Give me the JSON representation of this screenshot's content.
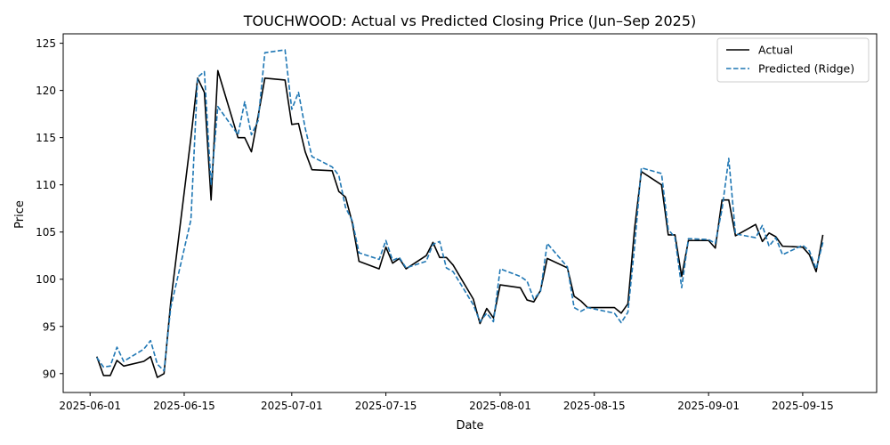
{
  "chart_data": {
    "type": "line",
    "title": "TOUCHWOOD: Actual vs Predicted Closing Price (Jun–Sep 2025)",
    "xlabel": "Date",
    "ylabel": "Price",
    "xlim": [
      "2025-05-28",
      "2025-09-26"
    ],
    "ylim": [
      88,
      126
    ],
    "x_ticks": [
      "2025-06-01",
      "2025-06-15",
      "2025-07-01",
      "2025-07-15",
      "2025-08-01",
      "2025-08-15",
      "2025-09-01",
      "2025-09-15"
    ],
    "y_ticks": [
      90,
      95,
      100,
      105,
      110,
      115,
      120,
      125
    ],
    "grid": false,
    "legend_position": "top-right",
    "series": [
      {
        "name": "Actual",
        "color": "#000000",
        "style": "solid",
        "points": [
          [
            "2025-06-02",
            91.8
          ],
          [
            "2025-06-03",
            89.8
          ],
          [
            "2025-06-04",
            89.8
          ],
          [
            "2025-06-05",
            91.4
          ],
          [
            "2025-06-06",
            90.8
          ],
          [
            "2025-06-09",
            91.3
          ],
          [
            "2025-06-10",
            91.8
          ],
          [
            "2025-06-11",
            89.6
          ],
          [
            "2025-06-12",
            90.0
          ],
          [
            "2025-06-13",
            97.6
          ],
          [
            "2025-06-16",
            115.0
          ],
          [
            "2025-06-17",
            121.3
          ],
          [
            "2025-06-18",
            119.8
          ],
          [
            "2025-06-19",
            108.4
          ],
          [
            "2025-06-20",
            122.1
          ],
          [
            "2025-06-23",
            115.0
          ],
          [
            "2025-06-24",
            115.0
          ],
          [
            "2025-06-25",
            113.5
          ],
          [
            "2025-06-26",
            117.3
          ],
          [
            "2025-06-27",
            121.3
          ],
          [
            "2025-06-30",
            121.1
          ],
          [
            "2025-07-01",
            116.4
          ],
          [
            "2025-07-02",
            116.5
          ],
          [
            "2025-07-03",
            113.5
          ],
          [
            "2025-07-04",
            111.6
          ],
          [
            "2025-07-07",
            111.5
          ],
          [
            "2025-07-08",
            109.3
          ],
          [
            "2025-07-09",
            108.7
          ],
          [
            "2025-07-10",
            106.0
          ],
          [
            "2025-07-11",
            101.9
          ],
          [
            "2025-07-14",
            101.1
          ],
          [
            "2025-07-15",
            103.4
          ],
          [
            "2025-07-16",
            101.7
          ],
          [
            "2025-07-17",
            102.2
          ],
          [
            "2025-07-18",
            101.1
          ],
          [
            "2025-07-21",
            102.5
          ],
          [
            "2025-07-22",
            103.9
          ],
          [
            "2025-07-23",
            102.3
          ],
          [
            "2025-07-24",
            102.3
          ],
          [
            "2025-07-25",
            101.5
          ],
          [
            "2025-07-28",
            97.9
          ],
          [
            "2025-07-29",
            95.3
          ],
          [
            "2025-07-30",
            96.9
          ],
          [
            "2025-07-31",
            95.9
          ],
          [
            "2025-08-01",
            99.4
          ],
          [
            "2025-08-04",
            99.1
          ],
          [
            "2025-08-05",
            97.8
          ],
          [
            "2025-08-06",
            97.6
          ],
          [
            "2025-08-07",
            98.8
          ],
          [
            "2025-08-08",
            102.2
          ],
          [
            "2025-08-11",
            101.2
          ],
          [
            "2025-08-12",
            98.2
          ],
          [
            "2025-08-13",
            97.7
          ],
          [
            "2025-08-14",
            97.0
          ],
          [
            "2025-08-18",
            97.0
          ],
          [
            "2025-08-19",
            96.4
          ],
          [
            "2025-08-20",
            97.4
          ],
          [
            "2025-08-21",
            105.4
          ],
          [
            "2025-08-22",
            111.4
          ],
          [
            "2025-08-25",
            110.0
          ],
          [
            "2025-08-26",
            104.7
          ],
          [
            "2025-08-27",
            104.7
          ],
          [
            "2025-08-28",
            100.3
          ],
          [
            "2025-08-29",
            104.1
          ],
          [
            "2025-09-01",
            104.1
          ],
          [
            "2025-09-02",
            103.3
          ],
          [
            "2025-09-03",
            108.4
          ],
          [
            "2025-09-04",
            108.4
          ],
          [
            "2025-09-05",
            104.6
          ],
          [
            "2025-09-08",
            105.8
          ],
          [
            "2025-09-09",
            104.0
          ],
          [
            "2025-09-10",
            104.9
          ],
          [
            "2025-09-11",
            104.5
          ],
          [
            "2025-09-12",
            103.5
          ],
          [
            "2025-09-15",
            103.4
          ],
          [
            "2025-09-16",
            102.6
          ],
          [
            "2025-09-17",
            100.8
          ],
          [
            "2025-09-18",
            104.7
          ]
        ]
      },
      {
        "name": "Predicted (Ridge)",
        "color": "#1f77b4",
        "style": "dashed",
        "points": [
          [
            "2025-06-02",
            91.7
          ],
          [
            "2025-06-03",
            90.7
          ],
          [
            "2025-06-04",
            90.8
          ],
          [
            "2025-06-05",
            92.8
          ],
          [
            "2025-06-06",
            91.3
          ],
          [
            "2025-06-09",
            92.6
          ],
          [
            "2025-06-10",
            93.5
          ],
          [
            "2025-06-11",
            91.0
          ],
          [
            "2025-06-12",
            90.3
          ],
          [
            "2025-06-13",
            97.0
          ],
          [
            "2025-06-16",
            106.3
          ],
          [
            "2025-06-17",
            121.4
          ],
          [
            "2025-06-18",
            122.0
          ],
          [
            "2025-06-19",
            110.0
          ],
          [
            "2025-06-20",
            118.3
          ],
          [
            "2025-06-23",
            115.3
          ],
          [
            "2025-06-24",
            118.8
          ],
          [
            "2025-06-25",
            115.3
          ],
          [
            "2025-06-26",
            116.8
          ],
          [
            "2025-06-27",
            124.0
          ],
          [
            "2025-06-30",
            124.3
          ],
          [
            "2025-07-01",
            118.0
          ],
          [
            "2025-07-02",
            119.8
          ],
          [
            "2025-07-03",
            116.0
          ],
          [
            "2025-07-04",
            113.0
          ],
          [
            "2025-07-07",
            111.9
          ],
          [
            "2025-07-08",
            111.0
          ],
          [
            "2025-07-09",
            107.6
          ],
          [
            "2025-07-10",
            106.2
          ],
          [
            "2025-07-11",
            102.8
          ],
          [
            "2025-07-14",
            102.1
          ],
          [
            "2025-07-15",
            104.1
          ],
          [
            "2025-07-16",
            102.0
          ],
          [
            "2025-07-17",
            102.3
          ],
          [
            "2025-07-18",
            101.2
          ],
          [
            "2025-07-21",
            101.9
          ],
          [
            "2025-07-22",
            103.7
          ],
          [
            "2025-07-23",
            104.0
          ],
          [
            "2025-07-24",
            101.2
          ],
          [
            "2025-07-25",
            100.8
          ],
          [
            "2025-07-28",
            97.3
          ],
          [
            "2025-07-29",
            95.5
          ],
          [
            "2025-07-30",
            96.4
          ],
          [
            "2025-07-31",
            95.5
          ],
          [
            "2025-08-01",
            101.1
          ],
          [
            "2025-08-04",
            100.3
          ],
          [
            "2025-08-05",
            99.8
          ],
          [
            "2025-08-06",
            97.9
          ],
          [
            "2025-08-07",
            98.7
          ],
          [
            "2025-08-08",
            103.8
          ],
          [
            "2025-08-11",
            101.3
          ],
          [
            "2025-08-12",
            97.0
          ],
          [
            "2025-08-13",
            96.6
          ],
          [
            "2025-08-14",
            97.0
          ],
          [
            "2025-08-18",
            96.4
          ],
          [
            "2025-08-19",
            95.4
          ],
          [
            "2025-08-20",
            96.5
          ],
          [
            "2025-08-21",
            103.5
          ],
          [
            "2025-08-22",
            111.8
          ],
          [
            "2025-08-25",
            111.2
          ],
          [
            "2025-08-26",
            105.3
          ],
          [
            "2025-08-27",
            104.4
          ],
          [
            "2025-08-28",
            99.1
          ],
          [
            "2025-08-29",
            104.3
          ],
          [
            "2025-09-01",
            104.2
          ],
          [
            "2025-09-02",
            103.8
          ],
          [
            "2025-09-03",
            107.4
          ],
          [
            "2025-09-04",
            112.8
          ],
          [
            "2025-09-05",
            104.8
          ],
          [
            "2025-09-08",
            104.4
          ],
          [
            "2025-09-09",
            105.7
          ],
          [
            "2025-09-10",
            103.5
          ],
          [
            "2025-09-11",
            104.4
          ],
          [
            "2025-09-12",
            102.6
          ],
          [
            "2025-09-15",
            103.6
          ],
          [
            "2025-09-16",
            103.0
          ],
          [
            "2025-09-17",
            101.1
          ],
          [
            "2025-09-18",
            103.9
          ]
        ]
      }
    ]
  }
}
